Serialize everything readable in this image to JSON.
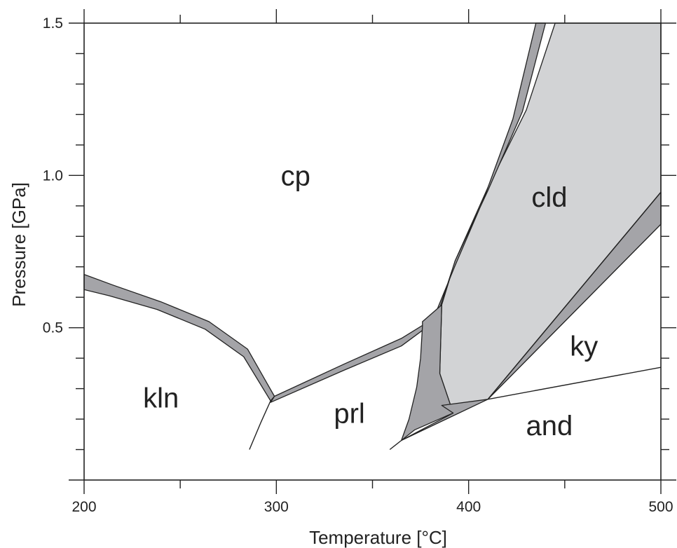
{
  "chart_data": {
    "type": "area",
    "title": "",
    "xlabel": "Temperature [°C]",
    "ylabel": "Pressure [GPa]",
    "xlim": [
      200,
      500
    ],
    "ylim": [
      0,
      1.5
    ],
    "x_ticks": [
      "200",
      "300",
      "400",
      "500"
    ],
    "y_ticks": [
      "0.5",
      "1.0",
      "1.5"
    ],
    "x_tick_values": [
      200,
      300,
      400,
      500
    ],
    "y_tick_values": [
      0.5,
      1.0,
      1.5
    ],
    "x_minor_step": 50,
    "y_minor_step": 0.1,
    "grid": false,
    "colors": {
      "dark_band": "#a4a4a8",
      "light_field": "#d2d3d5",
      "line": "#222222"
    },
    "bands": [
      {
        "fill": "dark",
        "points": [
          [
            200,
            0.675
          ],
          [
            215,
            0.64
          ],
          [
            240,
            0.585
          ],
          [
            265,
            0.52
          ],
          [
            285,
            0.43
          ],
          [
            299,
            0.275
          ],
          [
            297,
            0.26
          ],
          [
            283,
            0.405
          ],
          [
            263,
            0.495
          ],
          [
            238,
            0.56
          ],
          [
            213,
            0.605
          ],
          [
            200,
            0.625
          ]
        ]
      },
      {
        "fill": "dark",
        "points": [
          [
            299,
            0.275
          ],
          [
            335,
            0.38
          ],
          [
            365,
            0.465
          ],
          [
            383,
            0.535
          ],
          [
            380,
            0.51
          ],
          [
            365,
            0.44
          ],
          [
            335,
            0.36
          ],
          [
            297,
            0.255
          ]
        ]
      },
      {
        "fill": "light",
        "points": [
          [
            445,
            1.5
          ],
          [
            430,
            1.215
          ],
          [
            410,
            0.96
          ],
          [
            393,
            0.72
          ],
          [
            386,
            0.575
          ],
          [
            385,
            0.35
          ],
          [
            392,
            0.22
          ],
          [
            410,
            0.265
          ],
          [
            500,
            0.84
          ],
          [
            500,
            1.5
          ]
        ]
      },
      {
        "fill": "dark",
        "points": [
          [
            435,
            1.5
          ],
          [
            440,
            1.5
          ],
          [
            428,
            1.21
          ],
          [
            410,
            0.95
          ],
          [
            393,
            0.72
          ],
          [
            385,
            0.565
          ],
          [
            383,
            0.55
          ],
          [
            393,
            0.705
          ],
          [
            408,
            0.925
          ],
          [
            423,
            1.185
          ]
        ]
      },
      {
        "fill": "dark",
        "points": [
          [
            386,
            0.575
          ],
          [
            376,
            0.52
          ],
          [
            376,
            0.505
          ],
          [
            375,
            0.4
          ],
          [
            373,
            0.305
          ],
          [
            369,
            0.2
          ],
          [
            365,
            0.13
          ],
          [
            372,
            0.165
          ],
          [
            392,
            0.22
          ],
          [
            385,
            0.35
          ]
        ]
      },
      {
        "fill": "dark",
        "points": [
          [
            365,
            0.13
          ],
          [
            410,
            0.265
          ],
          [
            500,
            0.945
          ],
          [
            500,
            0.84
          ],
          [
            410,
            0.265
          ],
          [
            386,
            0.245
          ],
          [
            392,
            0.22
          ]
        ]
      }
    ],
    "lines": [
      {
        "points": [
          [
            297,
            0.26
          ],
          [
            292,
            0.19
          ],
          [
            286,
            0.1
          ]
        ]
      },
      {
        "points": [
          [
            365,
            0.13
          ],
          [
            359,
            0.1
          ]
        ]
      },
      {
        "points": [
          [
            410,
            0.265
          ],
          [
            500,
            0.37
          ]
        ]
      },
      {
        "points": [
          [
            500,
            0.945
          ],
          [
            410,
            0.265
          ]
        ]
      }
    ],
    "annotations": [
      {
        "text": "cp",
        "x": 310,
        "y": 1.0
      },
      {
        "text": "cld",
        "x": 442,
        "y": 0.93
      },
      {
        "text": "kln",
        "x": 240,
        "y": 0.27
      },
      {
        "text": "prl",
        "x": 338,
        "y": 0.22
      },
      {
        "text": "ky",
        "x": 460,
        "y": 0.44
      },
      {
        "text": "and",
        "x": 442,
        "y": 0.18
      }
    ]
  }
}
